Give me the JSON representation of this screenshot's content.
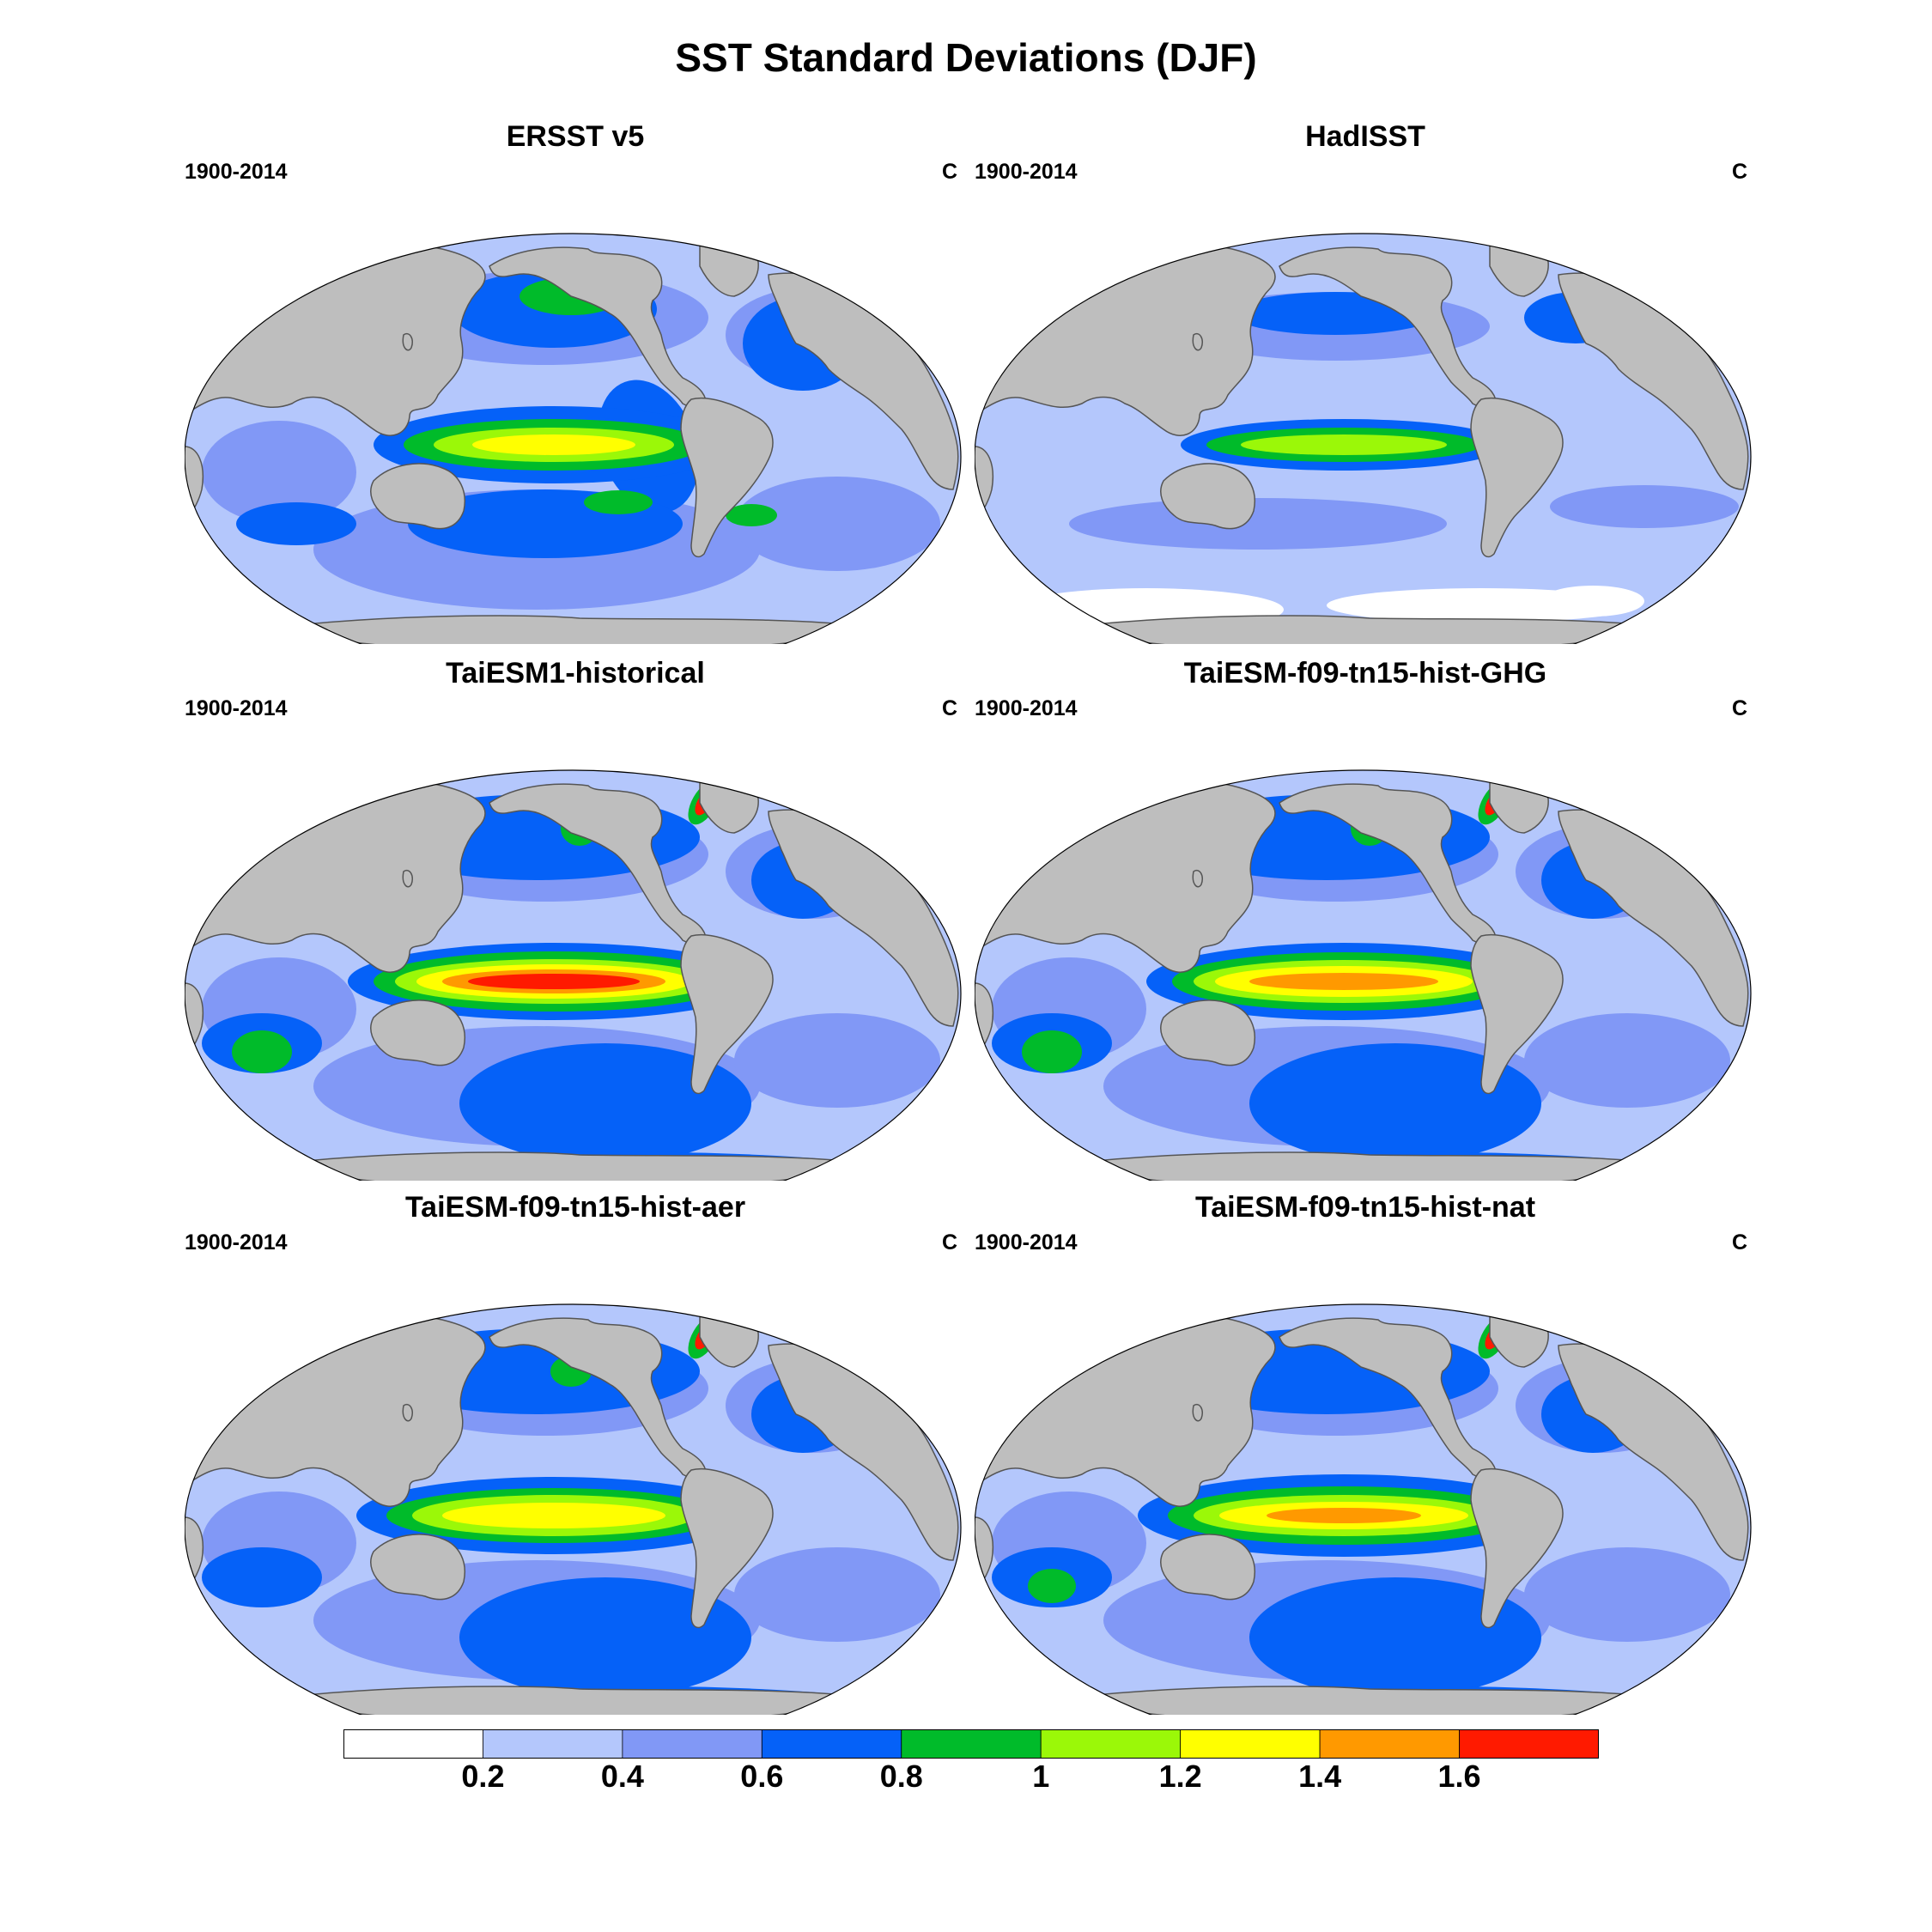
{
  "title": "SST Standard Deviations (DJF)",
  "panels": [
    {
      "title": "ERSST v5",
      "period": "1900-2014",
      "units": "C"
    },
    {
      "title": "HadISST",
      "period": "1900-2014",
      "units": "C"
    },
    {
      "title": "TaiESM1-historical",
      "period": "1900-2014",
      "units": "C"
    },
    {
      "title": "TaiESM-f09-tn15-hist-GHG",
      "period": "1900-2014",
      "units": "C"
    },
    {
      "title": "TaiESM-f09-tn15-hist-aer",
      "period": "1900-2014",
      "units": "C"
    },
    {
      "title": "TaiESM-f09-tn15-hist-nat",
      "period": "1900-2014",
      "units": "C"
    }
  ],
  "colorbar": {
    "colors": [
      "#ffffff",
      "#b4c7fc",
      "#8198f6",
      "#0561f8",
      "#00bb2a",
      "#9bf808",
      "#ffff00",
      "#ff9900",
      "#ff1a00"
    ],
    "labels": [
      "0.2",
      "0.4",
      "0.6",
      "0.8",
      "1",
      "1.2",
      "1.4",
      "1.6"
    ]
  },
  "map_colors": {
    "land": "#bebebe",
    "coast": "#555555"
  },
  "projection": "Robinson"
}
